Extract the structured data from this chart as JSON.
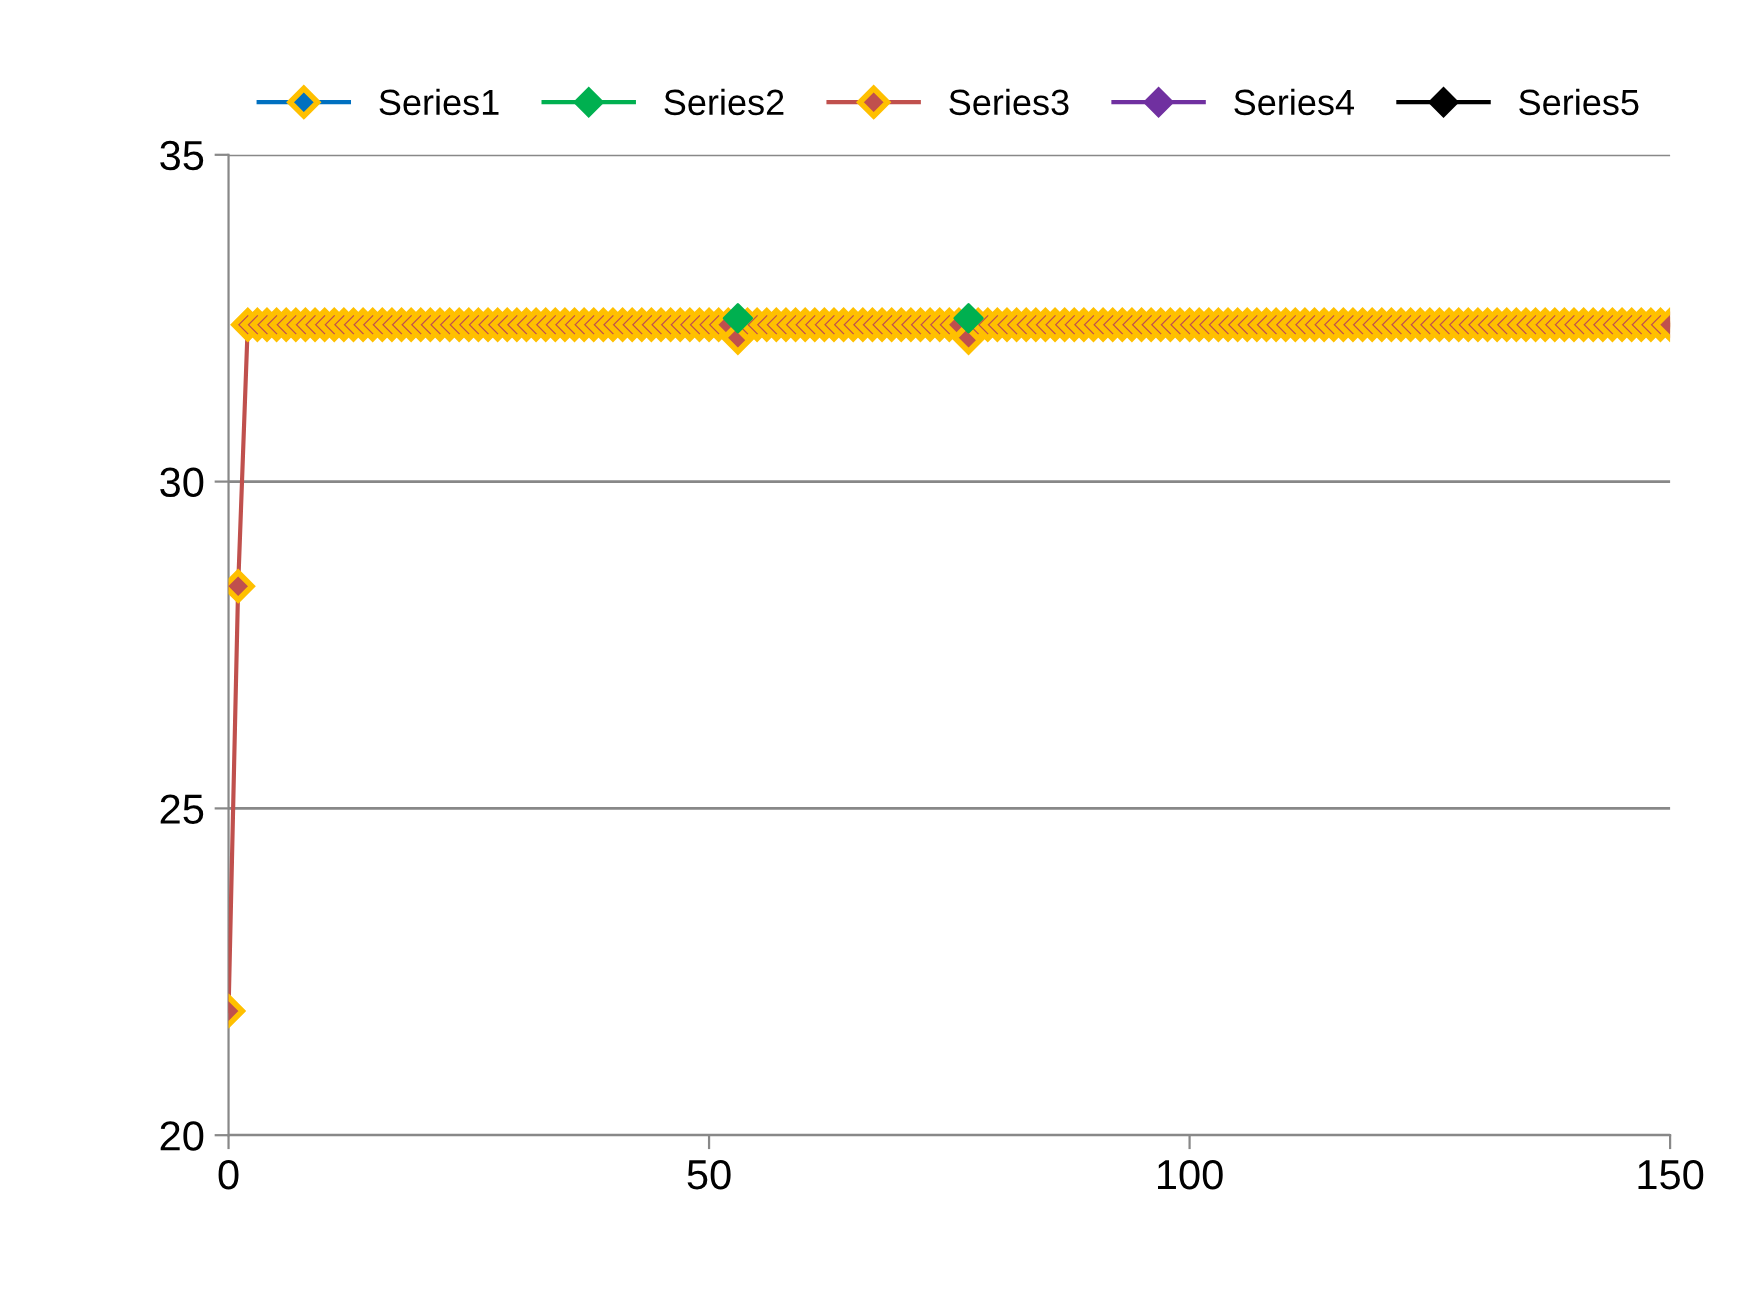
{
  "chart_data": {
    "type": "line",
    "x": [
      0,
      1,
      2,
      3,
      4,
      5,
      6,
      7,
      8,
      9,
      10,
      11,
      12,
      13,
      14,
      15,
      16,
      17,
      18,
      19,
      20,
      21,
      22,
      23,
      24,
      25,
      26,
      27,
      28,
      29,
      30,
      31,
      32,
      33,
      34,
      35,
      36,
      37,
      38,
      39,
      40,
      41,
      42,
      43,
      44,
      45,
      46,
      47,
      48,
      49,
      50,
      51,
      52,
      53,
      54,
      55,
      56,
      57,
      58,
      59,
      60,
      61,
      62,
      63,
      64,
      65,
      66,
      67,
      68,
      69,
      70,
      71,
      72,
      73,
      74,
      75,
      76,
      77,
      78,
      79,
      80,
      81,
      82,
      83,
      84,
      85,
      86,
      87,
      88,
      89,
      90,
      91,
      92,
      93,
      94,
      95,
      96,
      97,
      98,
      99,
      100,
      101,
      102,
      103,
      104,
      105,
      106,
      107,
      108,
      109,
      110,
      111,
      112,
      113,
      114,
      115,
      116,
      117,
      118,
      119,
      120,
      121,
      122,
      123,
      124,
      125,
      126,
      127,
      128,
      129,
      130,
      131,
      132,
      133,
      134,
      135,
      136,
      137,
      138,
      139,
      140,
      141,
      142,
      143,
      144,
      145,
      146,
      147,
      148,
      149,
      150
    ],
    "series": [
      {
        "name": "Series1",
        "color": "#0070c0",
        "values": [
          null,
          null,
          null,
          null,
          null,
          null,
          null,
          null,
          null,
          null,
          null,
          null,
          null,
          null,
          null,
          null,
          null,
          null,
          null,
          null,
          null,
          null,
          null,
          null,
          null,
          null,
          null,
          null,
          null,
          null,
          null,
          null,
          null,
          null,
          null,
          null,
          null,
          null,
          null,
          null,
          null,
          null,
          null,
          null,
          null,
          null,
          null,
          null,
          null,
          null,
          null,
          null,
          null,
          null,
          null,
          null,
          null,
          null,
          null,
          null,
          null,
          null,
          null,
          null,
          null,
          null,
          null,
          null,
          null,
          null,
          null,
          null,
          null,
          null,
          null,
          null,
          null,
          null,
          null,
          null,
          null,
          null,
          null,
          null,
          null,
          null,
          null,
          null,
          null,
          null,
          null,
          null,
          null,
          null,
          null,
          null,
          null,
          null,
          null,
          null,
          null,
          null,
          null,
          null,
          null,
          null,
          null,
          null,
          null,
          null,
          null,
          null,
          null,
          null,
          null,
          null,
          null,
          null,
          null,
          null,
          null,
          null,
          null,
          null,
          null,
          null,
          null,
          null,
          null,
          null,
          null,
          null,
          null,
          null,
          null,
          null,
          null,
          null,
          null,
          null,
          null,
          null,
          null,
          null,
          null,
          null,
          null,
          null,
          null,
          null,
          null
        ]
      },
      {
        "name": "Series2",
        "color": "#00b050",
        "type": "scatter",
        "values": [
          null,
          null,
          null,
          null,
          null,
          null,
          null,
          null,
          null,
          null,
          null,
          null,
          null,
          null,
          null,
          null,
          null,
          null,
          null,
          null,
          null,
          null,
          null,
          null,
          null,
          null,
          null,
          null,
          null,
          null,
          null,
          null,
          null,
          null,
          null,
          null,
          null,
          null,
          null,
          null,
          null,
          null,
          null,
          null,
          null,
          null,
          null,
          null,
          null,
          null,
          null,
          null,
          null,
          32.5,
          null,
          null,
          null,
          null,
          null,
          null,
          null,
          null,
          null,
          null,
          null,
          null,
          null,
          null,
          null,
          null,
          null,
          null,
          null,
          null,
          null,
          null,
          null,
          32.5,
          null,
          null,
          null,
          null,
          null,
          null,
          null,
          null,
          null,
          null,
          null,
          null,
          null,
          null,
          null,
          null,
          null,
          null,
          null,
          null,
          null,
          null,
          null,
          null,
          null,
          null,
          null,
          null,
          null,
          null,
          null,
          null,
          null,
          null,
          null,
          null,
          null,
          null,
          null,
          null,
          null,
          null,
          null,
          null,
          null,
          null,
          null,
          null,
          null,
          null,
          null,
          null,
          null,
          null,
          null,
          null,
          null,
          null,
          null,
          null,
          null,
          null,
          null,
          null,
          null,
          null,
          null,
          null,
          null,
          null,
          null,
          null,
          null
        ]
      },
      {
        "name": "Series3",
        "color": "#c0504d",
        "values": [
          21.9,
          28.4,
          32.4,
          32.4,
          32.4,
          32.4,
          32.4,
          32.4,
          32.4,
          32.4,
          32.4,
          32.4,
          32.4,
          32.4,
          32.4,
          32.4,
          32.4,
          32.4,
          32.4,
          32.4,
          32.4,
          32.4,
          32.4,
          32.4,
          32.4,
          32.4,
          32.4,
          32.4,
          32.4,
          32.4,
          32.4,
          32.4,
          32.4,
          32.4,
          32.4,
          32.4,
          32.4,
          32.4,
          32.4,
          32.4,
          32.4,
          32.4,
          32.4,
          32.4,
          32.4,
          32.4,
          32.4,
          32.4,
          32.4,
          32.4,
          32.4,
          32.4,
          32.4,
          32.2,
          32.4,
          32.4,
          32.4,
          32.4,
          32.4,
          32.4,
          32.4,
          32.4,
          32.4,
          32.4,
          32.4,
          32.4,
          32.4,
          32.4,
          32.4,
          32.4,
          32.4,
          32.4,
          32.4,
          32.4,
          32.4,
          32.4,
          32.4,
          32.2,
          32.4,
          32.4,
          32.4,
          32.4,
          32.4,
          32.4,
          32.4,
          32.4,
          32.4,
          32.4,
          32.4,
          32.4,
          32.4,
          32.4,
          32.4,
          32.4,
          32.4,
          32.4,
          32.4,
          32.4,
          32.4,
          32.4,
          32.4,
          32.4,
          32.4,
          32.4,
          32.4,
          32.4,
          32.4,
          32.4,
          32.4,
          32.4,
          32.4,
          32.4,
          32.4,
          32.4,
          32.4,
          32.4,
          32.4,
          32.4,
          32.4,
          32.4,
          32.4,
          32.4,
          32.4,
          32.4,
          32.4,
          32.4,
          32.4,
          32.4,
          32.4,
          32.4,
          32.4,
          32.4,
          32.4,
          32.4,
          32.4,
          32.4,
          32.4,
          32.4,
          32.4,
          32.4,
          32.4,
          32.4,
          32.4,
          32.4,
          32.4,
          32.4,
          32.4,
          32.4,
          32.4,
          32.4,
          32.4
        ]
      },
      {
        "name": "Series4",
        "color": "#7030a0",
        "values": [
          null,
          null,
          null,
          null,
          null,
          null,
          null,
          null,
          null,
          null,
          null,
          null,
          null,
          null,
          null,
          null,
          null,
          null,
          null,
          null,
          null,
          null,
          null,
          null,
          null,
          null,
          null,
          null,
          null,
          null,
          null,
          null,
          null,
          null,
          null,
          null,
          null,
          null,
          null,
          null,
          null,
          null,
          null,
          null,
          null,
          null,
          null,
          null,
          null,
          null,
          null,
          null,
          null,
          null,
          null,
          null,
          null,
          null,
          null,
          null,
          null,
          null,
          null,
          null,
          null,
          null,
          null,
          null,
          null,
          null,
          null,
          null,
          null,
          null,
          null,
          null,
          null,
          null,
          null,
          null,
          null,
          null,
          null,
          null,
          null,
          null,
          null,
          null,
          null,
          null,
          null,
          null,
          null,
          null,
          null,
          null,
          null,
          null,
          null,
          null,
          null,
          null,
          null,
          null,
          null,
          null,
          null,
          null,
          null,
          null,
          null,
          null,
          null,
          null,
          null,
          null,
          null,
          null,
          null,
          null,
          null,
          null,
          null,
          null,
          null,
          null,
          null,
          null,
          null,
          null,
          null,
          null,
          null,
          null,
          null,
          null,
          null,
          null,
          null,
          null,
          null,
          null,
          null,
          null,
          null,
          null,
          null,
          null,
          null,
          null,
          null
        ]
      },
      {
        "name": "Series5",
        "color": "#000000",
        "values": [
          null,
          null,
          null,
          null,
          null,
          null,
          null,
          null,
          null,
          null,
          null,
          null,
          null,
          null,
          null,
          null,
          null,
          null,
          null,
          null,
          null,
          null,
          null,
          null,
          null,
          null,
          null,
          null,
          null,
          null,
          null,
          null,
          null,
          null,
          null,
          null,
          null,
          null,
          null,
          null,
          null,
          null,
          null,
          null,
          null,
          null,
          null,
          null,
          null,
          null,
          null,
          null,
          null,
          null,
          null,
          null,
          null,
          null,
          null,
          null,
          null,
          null,
          null,
          null,
          null,
          null,
          null,
          null,
          null,
          null,
          null,
          null,
          null,
          null,
          null,
          null,
          null,
          null,
          null,
          null,
          null,
          null,
          null,
          null,
          null,
          null,
          null,
          null,
          null,
          null,
          null,
          null,
          null,
          null,
          null,
          null,
          null,
          null,
          null,
          null,
          null,
          null,
          null,
          null,
          null,
          null,
          null,
          null,
          null,
          null,
          null,
          null,
          null,
          null,
          null,
          null,
          null,
          null,
          null,
          null,
          null,
          null,
          null,
          null,
          null,
          null,
          null,
          null,
          null,
          null,
          null,
          null,
          null,
          null,
          null,
          null,
          null,
          null,
          null,
          null,
          null,
          null,
          null,
          null,
          null,
          null,
          null,
          null,
          null,
          null,
          null
        ]
      }
    ],
    "xlim": [
      0,
      150
    ],
    "xticks": [
      0,
      50,
      100,
      150
    ],
    "ylim": [
      20,
      35
    ],
    "yticks": [
      20,
      25,
      30,
      35
    ],
    "grid": "y",
    "legend": "top",
    "marker": "diamond",
    "line_style": "solid"
  }
}
